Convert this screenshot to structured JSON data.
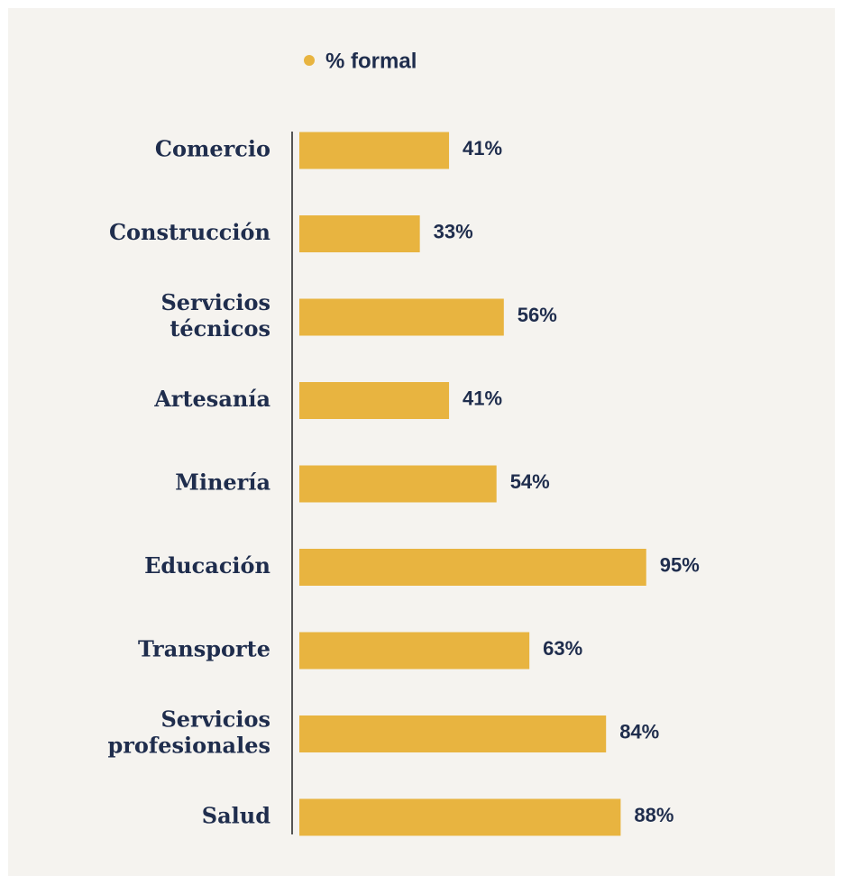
{
  "chart_data": {
    "type": "bar",
    "orientation": "horizontal",
    "categories": [
      [
        "Comercio"
      ],
      [
        "Construcción"
      ],
      [
        "Servicios",
        "técnicos"
      ],
      [
        "Artesanía"
      ],
      [
        "Minería"
      ],
      [
        "Educación"
      ],
      [
        "Transporte"
      ],
      [
        "Servicios",
        "profesionales"
      ],
      [
        "Salud"
      ]
    ],
    "series": [
      {
        "name": "% formal",
        "values": [
          41,
          33,
          56,
          41,
          54,
          95,
          63,
          84,
          88
        ]
      }
    ],
    "value_labels": [
      "41%",
      "33%",
      "56%",
      "41%",
      "54%",
      "95%",
      "63%",
      "84%",
      "88%"
    ],
    "xlim": [
      0,
      100
    ],
    "grid": false,
    "legend_position": "top",
    "colors": {
      "bar": "#e8b440",
      "text": "#1f2d4d",
      "axis": "#555555",
      "background": "#f5f3ef"
    }
  }
}
